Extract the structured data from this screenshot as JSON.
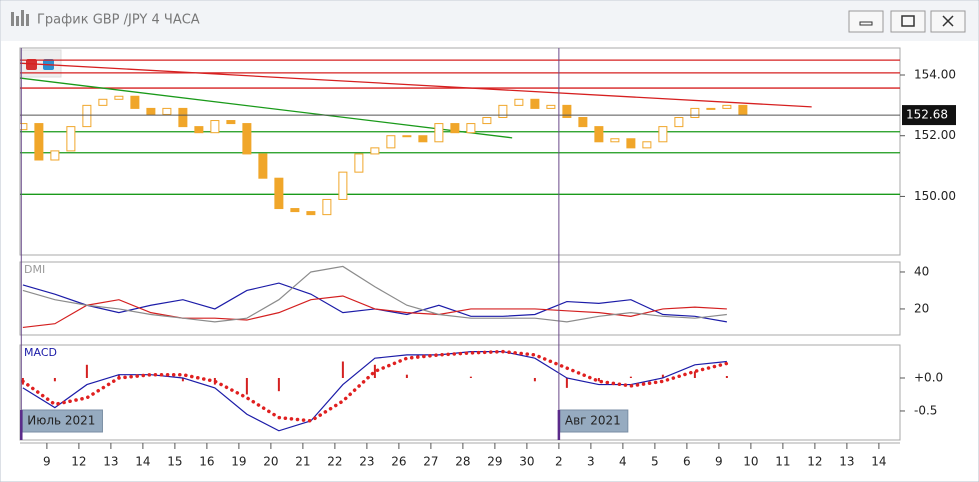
{
  "window": {
    "title": "График GBP /JPY  4 ЧАСА"
  },
  "x_axis": {
    "xlim": [
      -0.84,
      26.66
    ],
    "xticks": [
      {
        "value": 0,
        "label": "9"
      },
      {
        "value": 1,
        "label": "12"
      },
      {
        "value": 2,
        "label": "13"
      },
      {
        "value": 3,
        "label": "14"
      },
      {
        "value": 4,
        "label": "15"
      },
      {
        "value": 5,
        "label": "16"
      },
      {
        "value": 6,
        "label": "19"
      },
      {
        "value": 7,
        "label": "20"
      },
      {
        "value": 8,
        "label": "21"
      },
      {
        "value": 9,
        "label": "22"
      },
      {
        "value": 10,
        "label": "23"
      },
      {
        "value": 11,
        "label": "26"
      },
      {
        "value": 12,
        "label": "27"
      },
      {
        "value": 13,
        "label": "28"
      },
      {
        "value": 14,
        "label": "29"
      },
      {
        "value": 15,
        "label": "30"
      },
      {
        "value": 16,
        "label": "2"
      },
      {
        "value": 17,
        "label": "3"
      },
      {
        "value": 18,
        "label": "4"
      },
      {
        "value": 19,
        "label": "5"
      },
      {
        "value": 20,
        "label": "6"
      },
      {
        "value": 21,
        "label": "9"
      },
      {
        "value": 22,
        "label": "10"
      },
      {
        "value": 23,
        "label": "11"
      },
      {
        "value": 24,
        "label": "12"
      },
      {
        "value": 25,
        "label": "13"
      },
      {
        "value": 26,
        "label": "14"
      }
    ]
  },
  "chart_data": [
    {
      "type": "candlestick",
      "color": "#f0a62a",
      "x": [
        -0.75,
        -0.25,
        0.25,
        0.75,
        1.25,
        1.75,
        2.25,
        2.75,
        3.25,
        3.75,
        4.25,
        4.75,
        5.25,
        5.75,
        6.25,
        6.75,
        7.25,
        7.75,
        8.25,
        8.75,
        9.25,
        9.75,
        10.25,
        10.75,
        11.25,
        11.75,
        12.25,
        12.75,
        13.25,
        13.75,
        14.25,
        14.75,
        15.25,
        15.75,
        16.25,
        16.75,
        17.25,
        17.75,
        18.25,
        18.75,
        19.25,
        19.75,
        20.25,
        20.75,
        21.25,
        21.75
      ],
      "open": [
        152.2,
        152.4,
        151.2,
        151.5,
        152.3,
        153.0,
        153.2,
        153.3,
        152.9,
        152.7,
        152.9,
        152.3,
        152.1,
        152.5,
        152.4,
        151.4,
        150.6,
        149.6,
        149.5,
        149.4,
        149.9,
        150.8,
        151.4,
        151.6,
        152.0,
        152.0,
        151.8,
        152.4,
        152.1,
        152.4,
        152.6,
        153.0,
        153.2,
        152.9,
        153.0,
        152.6,
        152.3,
        151.8,
        151.9,
        151.6,
        151.8,
        152.3,
        152.6,
        152.9,
        152.9,
        153.0
      ],
      "close": [
        152.4,
        151.2,
        151.5,
        152.3,
        153.0,
        153.2,
        153.3,
        152.9,
        152.7,
        152.9,
        152.3,
        152.1,
        152.5,
        152.4,
        151.4,
        150.6,
        149.6,
        149.5,
        149.4,
        149.9,
        150.8,
        151.4,
        151.6,
        152.0,
        152.0,
        151.8,
        152.4,
        152.1,
        152.4,
        152.6,
        153.0,
        153.2,
        152.9,
        153.0,
        152.6,
        152.3,
        151.8,
        151.9,
        151.6,
        151.8,
        152.3,
        152.6,
        152.9,
        152.9,
        153.0,
        152.7
      ],
      "ylim": [
        148.07,
        154.89
      ],
      "yticks": [
        {
          "value": 154,
          "label": "154.00"
        },
        {
          "value": 152,
          "label": "152.00"
        },
        {
          "value": 150,
          "label": "150.00"
        }
      ],
      "hlines": [
        {
          "value": 154.49,
          "color": "#d62020"
        },
        {
          "value": 154.07,
          "color": "#d62020"
        },
        {
          "value": 153.57,
          "color": "#d62020"
        },
        {
          "value": 152.13,
          "color": "#1a9a1a"
        },
        {
          "value": 151.44,
          "color": "#1a9a1a"
        },
        {
          "value": 150.07,
          "color": "#1a9a1a"
        }
      ],
      "trendlines": [
        {
          "x": [
            -0.84,
            23.9
          ],
          "y": [
            154.39,
            152.95
          ],
          "color": "#d62020"
        },
        {
          "x": [
            -0.84,
            14.54
          ],
          "y": [
            153.9,
            151.93
          ],
          "color": "#1a9a1a"
        }
      ],
      "last_price": 152.68
    },
    {
      "type": "line",
      "title": "DMI",
      "x": [
        -0.75,
        0.25,
        1.25,
        2.25,
        3.25,
        4.25,
        5.25,
        6.25,
        7.25,
        8.25,
        9.25,
        10.25,
        11.25,
        12.25,
        13.25,
        14.25,
        15.25,
        16.25,
        17.25,
        18.25,
        19.25,
        20.25,
        21.25
      ],
      "series": [
        {
          "color": "#1c1ca8",
          "values": [
            33,
            28,
            22,
            18,
            22,
            25,
            20,
            30,
            34,
            28,
            18,
            20,
            17,
            22,
            16,
            16,
            17,
            24,
            23,
            25,
            17,
            16,
            13
          ]
        },
        {
          "color": "#d42020",
          "values": [
            10,
            12,
            22,
            25,
            18,
            15,
            15,
            14,
            18,
            25,
            27,
            20,
            18,
            17,
            20,
            20,
            20,
            19,
            18,
            16,
            20,
            21,
            20
          ]
        },
        {
          "color": "#8c8c8c",
          "values": [
            30,
            25,
            22,
            20,
            17,
            15,
            13,
            15,
            25,
            40,
            43,
            32,
            22,
            17,
            15,
            15,
            15,
            13,
            16,
            18,
            16,
            15,
            17
          ]
        }
      ],
      "ylim": [
        5.9,
        45.4
      ],
      "yticks": [
        40,
        20
      ]
    },
    {
      "type": "combo",
      "title": "MACD",
      "x": [
        -0.75,
        0.25,
        1.25,
        2.25,
        3.25,
        4.25,
        5.25,
        6.25,
        7.25,
        8.25,
        9.25,
        10.25,
        11.25,
        12.25,
        13.25,
        14.25,
        15.25,
        16.25,
        17.25,
        18.25,
        19.25,
        20.25,
        21.25
      ],
      "series": [
        {
          "kind": "bar",
          "color": "#d42020",
          "values": [
            -0.1,
            -0.05,
            0.2,
            0.05,
            0,
            -0.05,
            -0.1,
            -0.25,
            -0.2,
            0,
            0.25,
            0.2,
            0.05,
            0,
            0.02,
            0,
            -0.05,
            -0.15,
            -0.05,
            0.02,
            0.05,
            0.1,
            0.03
          ]
        },
        {
          "kind": "line",
          "color": "#1c1ca8",
          "values": [
            -0.15,
            -0.45,
            -0.1,
            0.05,
            0.05,
            0.0,
            -0.15,
            -0.55,
            -0.8,
            -0.65,
            -0.1,
            0.3,
            0.35,
            0.35,
            0.4,
            0.4,
            0.3,
            0.0,
            -0.1,
            -0.1,
            0.0,
            0.2,
            0.25
          ]
        },
        {
          "kind": "dotted",
          "color": "#e02020",
          "values": [
            -0.05,
            -0.4,
            -0.3,
            0.0,
            0.05,
            0.05,
            -0.05,
            -0.3,
            -0.6,
            -0.65,
            -0.35,
            0.1,
            0.3,
            0.35,
            0.38,
            0.4,
            0.35,
            0.15,
            -0.05,
            -0.12,
            -0.05,
            0.1,
            0.22
          ]
        }
      ],
      "ylim": [
        -0.94,
        0.5
      ],
      "yticks": [
        {
          "value": 0,
          "label": "+0.0"
        },
        -0.5
      ],
      "annotations": [
        {
          "text": "Июль 2021",
          "x": -0.8
        },
        {
          "text": "Авг 2021",
          "x": 16
        }
      ]
    }
  ]
}
